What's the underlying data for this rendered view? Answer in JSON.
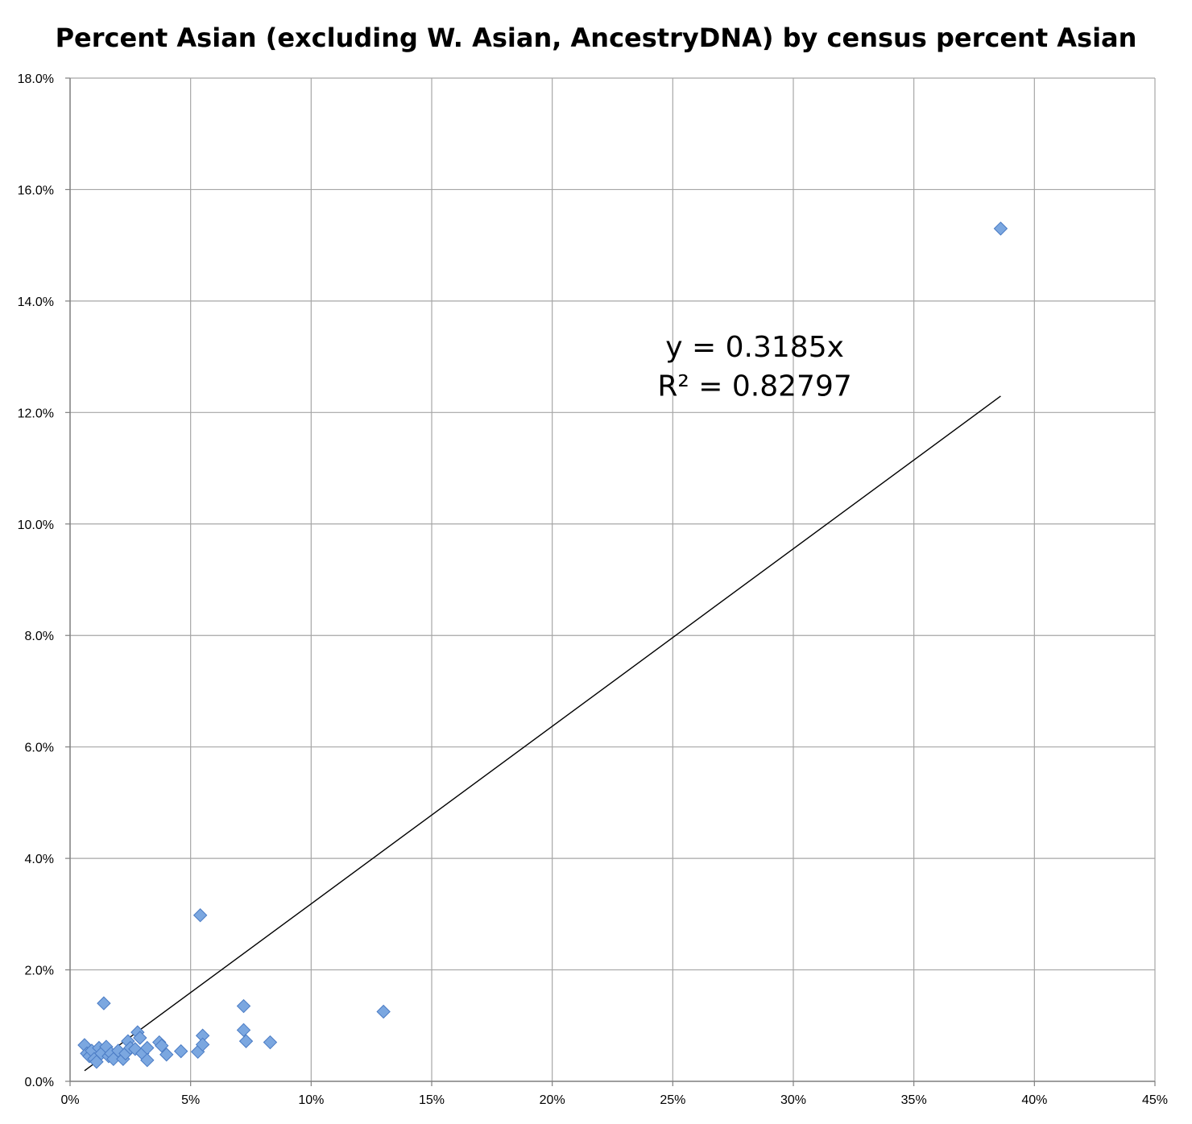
{
  "chart_data": {
    "type": "scatter",
    "title": "Percent Asian (excluding W. Asian, AncestryDNA) by census percent Asian",
    "xlabel": "",
    "ylabel": "",
    "xlim": [
      0,
      45
    ],
    "ylim": [
      0,
      18
    ],
    "x_ticks": [
      0,
      5,
      10,
      15,
      20,
      25,
      30,
      35,
      40,
      45
    ],
    "x_tick_labels": [
      "0%",
      "5%",
      "10%",
      "15%",
      "20%",
      "25%",
      "30%",
      "35%",
      "40%",
      "45%"
    ],
    "y_ticks": [
      0,
      2,
      4,
      6,
      8,
      10,
      12,
      14,
      16,
      18
    ],
    "y_tick_labels": [
      "0.0%",
      "2.0%",
      "4.0%",
      "6.0%",
      "8.0%",
      "10.0%",
      "12.0%",
      "14.0%",
      "16.0%",
      "18.0%"
    ],
    "grid": true,
    "legend": "none",
    "x_units": "percent",
    "y_units": "percent",
    "series": [
      {
        "color": "#7ba7e0",
        "marker": "diamond",
        "points": [
          [
            0.6,
            0.65
          ],
          [
            0.7,
            0.5
          ],
          [
            0.8,
            0.45
          ],
          [
            0.9,
            0.55
          ],
          [
            1.0,
            0.4
          ],
          [
            1.1,
            0.35
          ],
          [
            1.2,
            0.6
          ],
          [
            1.3,
            0.5
          ],
          [
            1.4,
            1.4
          ],
          [
            1.5,
            0.62
          ],
          [
            1.6,
            0.45
          ],
          [
            1.7,
            0.5
          ],
          [
            1.8,
            0.4
          ],
          [
            2.0,
            0.55
          ],
          [
            2.2,
            0.4
          ],
          [
            2.3,
            0.5
          ],
          [
            2.4,
            0.72
          ],
          [
            2.5,
            0.6
          ],
          [
            2.7,
            0.58
          ],
          [
            2.8,
            0.88
          ],
          [
            2.9,
            0.78
          ],
          [
            3.0,
            0.5
          ],
          [
            3.2,
            0.6
          ],
          [
            3.2,
            0.38
          ],
          [
            3.7,
            0.7
          ],
          [
            3.8,
            0.64
          ],
          [
            4.0,
            0.48
          ],
          [
            4.6,
            0.54
          ],
          [
            5.3,
            0.53
          ],
          [
            5.4,
            2.98
          ],
          [
            5.5,
            0.82
          ],
          [
            5.5,
            0.66
          ],
          [
            7.2,
            1.35
          ],
          [
            7.2,
            0.92
          ],
          [
            7.3,
            0.72
          ],
          [
            8.3,
            0.7
          ],
          [
            13.0,
            1.25
          ],
          [
            38.6,
            15.3
          ]
        ]
      }
    ],
    "trendline": {
      "type": "linear",
      "slope": 0.3185,
      "intercept": 0,
      "x_range": [
        0.6,
        38.6
      ],
      "color": "#000000"
    },
    "annotations": [
      {
        "text": "y = 0.3185x",
        "x": 28.4,
        "y": 13.0
      },
      {
        "text": "R² = 0.82797",
        "x": 28.4,
        "y": 12.3
      }
    ]
  }
}
